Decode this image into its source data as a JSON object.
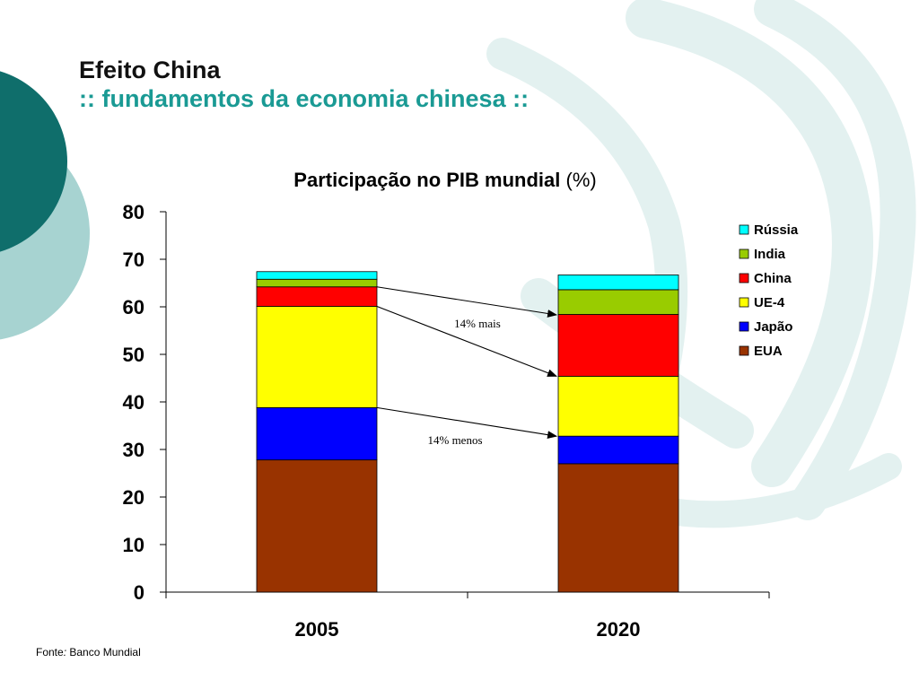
{
  "slide": {
    "title": "Efeito China",
    "subtitle": ":: fundamentos da economia chinesa ::",
    "source_label": "Fonte",
    "source_sep": ": ",
    "source_value": "Banco Mundial"
  },
  "colors": {
    "accent": "#1a9a94",
    "bg_dark": "#0f6e6b",
    "bg_light": "#a7d3d1",
    "bg_pale": "#e3f1f0"
  },
  "chart_data": {
    "type": "bar",
    "stacked": true,
    "title": "Participação no PIB mundial",
    "title_suffix": "(%)",
    "categories": [
      "2005",
      "2020"
    ],
    "ylim": [
      0,
      80
    ],
    "yticks": [
      0,
      10,
      20,
      30,
      40,
      50,
      60,
      70,
      80
    ],
    "legend_position": "right",
    "series": [
      {
        "name": "EUA",
        "color": "#993300",
        "values": [
          27.8,
          27.0
        ]
      },
      {
        "name": "Japão",
        "color": "#0000ff",
        "values": [
          11.0,
          5.8
        ]
      },
      {
        "name": "UE-4",
        "color": "#ffff00",
        "values": [
          21.3,
          12.6
        ]
      },
      {
        "name": "China",
        "color": "#ff0000",
        "values": [
          4.1,
          13.0
        ]
      },
      {
        "name": "India",
        "color": "#99cc00",
        "values": [
          1.6,
          5.2
        ]
      },
      {
        "name": "Rússia",
        "color": "#00ffff",
        "values": [
          1.6,
          3.1
        ]
      }
    ],
    "annotations": [
      {
        "text": "14% mais"
      },
      {
        "text": "14% menos"
      }
    ]
  }
}
